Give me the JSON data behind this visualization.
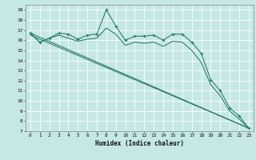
{
  "xlabel": "Humidex (Indice chaleur)",
  "bg_color": "#c5e8e5",
  "grid_color": "#ffffff",
  "line_color": "#2e7d6e",
  "xlim": [
    -0.5,
    23.5
  ],
  "ylim": [
    7,
    19.5
  ],
  "yticks": [
    7,
    8,
    9,
    10,
    11,
    12,
    13,
    14,
    15,
    16,
    17,
    18,
    19
  ],
  "xticks": [
    0,
    1,
    2,
    3,
    4,
    5,
    6,
    7,
    8,
    9,
    10,
    11,
    12,
    13,
    14,
    15,
    16,
    17,
    18,
    19,
    20,
    21,
    22,
    23
  ],
  "curve1_x": [
    0,
    1,
    2,
    3,
    4,
    5,
    6,
    7,
    8,
    9,
    10,
    11,
    12,
    13,
    14,
    15,
    16,
    17,
    18,
    19,
    20,
    21,
    22,
    23
  ],
  "curve1_y": [
    16.7,
    15.8,
    16.2,
    16.7,
    16.6,
    16.1,
    16.5,
    16.6,
    19.0,
    17.4,
    16.0,
    16.4,
    16.4,
    16.5,
    16.0,
    16.6,
    16.6,
    15.8,
    14.7,
    12.1,
    11.0,
    9.3,
    8.5,
    7.3
  ],
  "curve2_x": [
    0,
    1,
    2,
    3,
    4,
    5,
    6,
    7,
    8,
    9,
    10,
    11,
    12,
    13,
    14,
    15,
    16,
    17,
    18,
    19,
    20,
    21,
    22,
    23
  ],
  "curve2_y": [
    16.7,
    15.8,
    16.2,
    16.5,
    16.2,
    15.9,
    16.1,
    16.2,
    17.2,
    16.6,
    15.5,
    15.8,
    15.7,
    15.8,
    15.4,
    15.9,
    15.8,
    15.0,
    13.8,
    11.6,
    10.5,
    9.0,
    8.2,
    7.3
  ],
  "line3_x": [
    0,
    23
  ],
  "line3_y": [
    16.7,
    7.3
  ],
  "line4_x": [
    0,
    23
  ],
  "line4_y": [
    16.5,
    7.3
  ]
}
